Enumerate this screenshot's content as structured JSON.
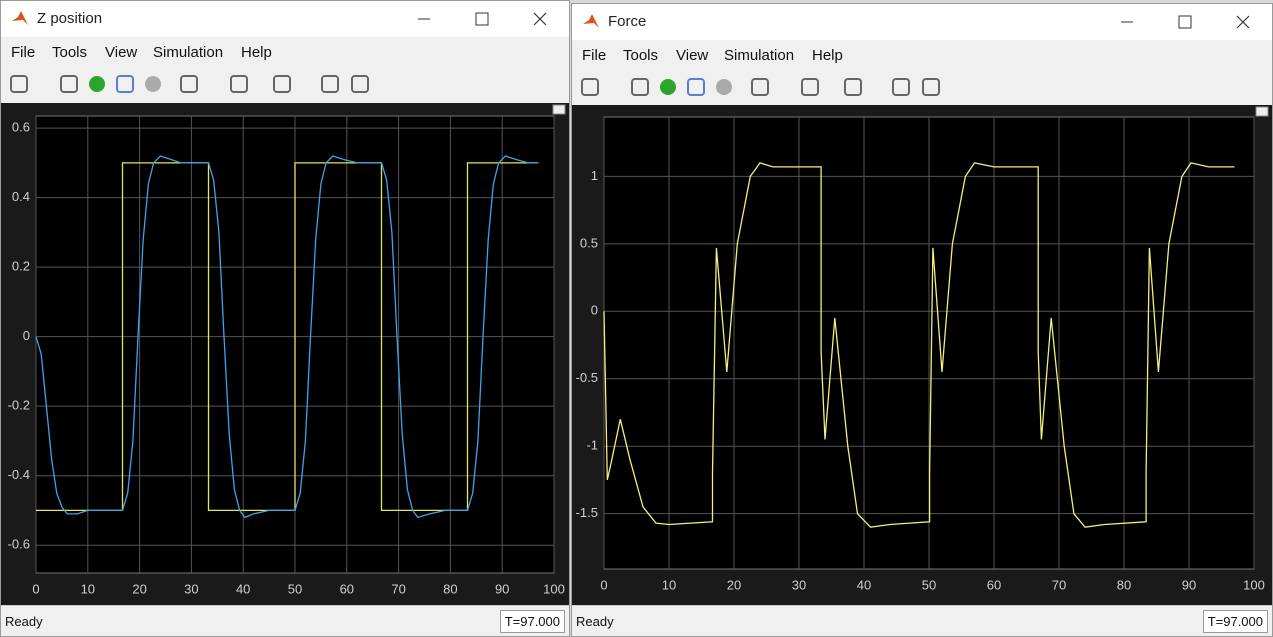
{
  "windows": [
    {
      "title": "Z position",
      "menu": [
        "File",
        "Tools",
        "View",
        "Simulation",
        "Help"
      ],
      "status": "Ready",
      "time": "T=97.000",
      "chart_data": {
        "type": "line",
        "xlim": [
          0,
          100
        ],
        "ylim": [
          -0.68,
          0.635
        ],
        "xticks": [
          0,
          10,
          20,
          30,
          40,
          50,
          60,
          70,
          80,
          90,
          100
        ],
        "yticks": [
          -0.6,
          -0.4,
          -0.2,
          0,
          0.2,
          0.4,
          0.6
        ],
        "grid": true,
        "series": [
          {
            "color": "#e8e65c",
            "x": [
              0,
              16.7,
              16.7,
              33.3,
              33.3,
              50,
              50,
              66.7,
              66.7,
              83.3,
              83.3,
              97
            ],
            "values": [
              -0.5,
              -0.5,
              0.5,
              0.5,
              -0.5,
              -0.5,
              0.5,
              0.5,
              -0.5,
              -0.5,
              0.5,
              0.5
            ]
          },
          {
            "color": "#3fa2ec",
            "x": [
              0,
              1,
              2,
              3,
              4,
              5,
              6,
              8,
              10,
              16.7,
              17.7,
              18.7,
              19.7,
              20.7,
              21.7,
              22.7,
              24,
              26,
              28,
              33.3,
              34.3,
              35.3,
              36.3,
              37.3,
              38.3,
              39.3,
              40.3,
              42,
              45,
              50,
              51,
              52,
              53,
              54,
              55,
              56,
              57.3,
              59.3,
              62,
              66.7,
              67.7,
              68.7,
              69.7,
              70.7,
              71.7,
              72.7,
              73.7,
              76,
              79,
              83.3,
              84.3,
              85.3,
              86.3,
              87.3,
              88.3,
              89.3,
              90.6,
              92.6,
              95,
              97
            ],
            "values": [
              0,
              -0.05,
              -0.2,
              -0.35,
              -0.45,
              -0.49,
              -0.51,
              -0.51,
              -0.5,
              -0.5,
              -0.45,
              -0.3,
              0,
              0.28,
              0.44,
              0.5,
              0.52,
              0.51,
              0.5,
              0.5,
              0.45,
              0.3,
              0,
              -0.28,
              -0.44,
              -0.5,
              -0.52,
              -0.51,
              -0.5,
              -0.5,
              -0.45,
              -0.3,
              0,
              0.28,
              0.44,
              0.5,
              0.52,
              0.51,
              0.5,
              0.5,
              0.45,
              0.3,
              0,
              -0.28,
              -0.44,
              -0.5,
              -0.52,
              -0.51,
              -0.5,
              -0.5,
              -0.45,
              -0.3,
              0,
              0.28,
              0.44,
              0.5,
              0.52,
              0.51,
              0.5,
              0.5
            ]
          }
        ]
      }
    },
    {
      "title": "Force",
      "menu": [
        "File",
        "Tools",
        "View",
        "Simulation",
        "Help"
      ],
      "status": "Ready",
      "time": "T=97.000",
      "chart_data": {
        "type": "line",
        "xlim": [
          0,
          100
        ],
        "ylim": [
          -1.91,
          1.44
        ],
        "xticks": [
          0,
          10,
          20,
          30,
          40,
          50,
          60,
          70,
          80,
          90,
          100
        ],
        "yticks": [
          -1.5,
          -1,
          -0.5,
          0,
          0.5,
          1
        ],
        "grid": true,
        "series": [
          {
            "color": "#f2f07a",
            "x": [
              0,
              0.5,
              1.2,
              2.5,
              4,
              6,
              8,
              10,
              16.7,
              16.7,
              17.3,
              18.9,
              20.5,
              22.5,
              24,
              26,
              33.4,
              33.4,
              34,
              35.5,
              37.5,
              39,
              41,
              44,
              50.1,
              50.1,
              50.6,
              52,
              53.6,
              55.6,
              57,
              60,
              66.8,
              66.8,
              67.3,
              68.8,
              70.8,
              72.3,
              74,
              77,
              83.4,
              83.4,
              83.9,
              85.3,
              86.9,
              88.9,
              90.3,
              93,
              97
            ],
            "values": [
              0,
              -1.25,
              -1.1,
              -0.8,
              -1.1,
              -1.45,
              -1.57,
              -1.58,
              -1.56,
              -1.2,
              0.47,
              -0.45,
              0.5,
              1.0,
              1.1,
              1.07,
              1.07,
              -0.3,
              -0.95,
              -0.05,
              -1.0,
              -1.5,
              -1.6,
              -1.58,
              -1.56,
              -1.2,
              0.47,
              -0.45,
              0.5,
              1.0,
              1.1,
              1.07,
              1.07,
              -0.3,
              -0.95,
              -0.05,
              -1.0,
              -1.5,
              -1.6,
              -1.58,
              -1.56,
              -1.2,
              0.47,
              -0.45,
              0.5,
              1.0,
              1.1,
              1.07,
              1.07
            ]
          }
        ]
      }
    }
  ]
}
